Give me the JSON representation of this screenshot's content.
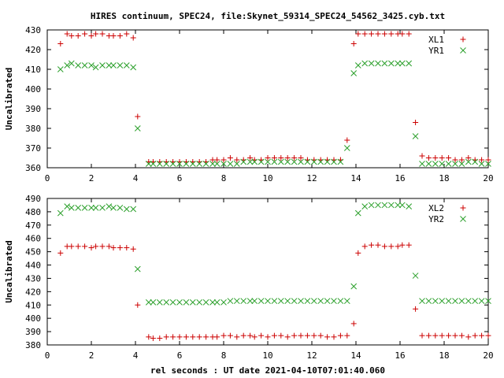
{
  "title": "HIRES continuum, SPEC24, file:Skynet_59314_SPEC24_54562_3425.cyb.txt",
  "xlabel": "rel seconds : UT date 2021-04-10T07:01:40.060",
  "colors": {
    "red": "#cc0000",
    "green": "#2ca02c",
    "axis": "#000000"
  },
  "chart_data": [
    {
      "type": "scatter",
      "ylabel": "Uncalibrated",
      "xlim": [
        0,
        20
      ],
      "ylim": [
        360,
        430
      ],
      "xticks": [
        0,
        2,
        4,
        6,
        8,
        10,
        12,
        14,
        16,
        18,
        20
      ],
      "yticks": [
        360,
        370,
        380,
        390,
        400,
        410,
        420,
        430
      ],
      "legend_position": "top-right",
      "series": [
        {
          "name": "XL1",
          "marker": "plus",
          "color": "#cc0000",
          "x": [
            0.6,
            0.9,
            1.1,
            1.4,
            1.7,
            2.0,
            2.2,
            2.5,
            2.8,
            3.0,
            3.3,
            3.6,
            3.9,
            4.1,
            4.6,
            4.8,
            5.1,
            5.4,
            5.7,
            6.0,
            6.3,
            6.6,
            6.9,
            7.2,
            7.5,
            7.7,
            8.0,
            8.3,
            8.6,
            8.9,
            9.2,
            9.4,
            9.7,
            10.0,
            10.3,
            10.6,
            10.9,
            11.2,
            11.5,
            11.8,
            12.1,
            12.4,
            12.7,
            13.0,
            13.3,
            13.6,
            13.9,
            14.1,
            14.4,
            14.7,
            15.0,
            15.3,
            15.6,
            15.9,
            16.1,
            16.4,
            16.7,
            17.0,
            17.3,
            17.6,
            17.9,
            18.2,
            18.5,
            18.8,
            19.1,
            19.4,
            19.7,
            20.0
          ],
          "y": [
            423,
            428,
            427,
            427,
            428,
            427,
            428,
            428,
            427,
            427,
            427,
            428,
            426,
            386,
            363,
            363,
            363,
            363,
            363,
            363,
            363,
            363,
            363,
            363,
            364,
            364,
            364,
            365,
            364,
            364,
            365,
            364,
            364,
            365,
            365,
            365,
            365,
            365,
            365,
            364,
            364,
            364,
            364,
            364,
            364,
            374,
            423,
            428,
            428,
            428,
            428,
            428,
            428,
            428,
            428,
            428,
            383,
            366,
            365,
            365,
            365,
            365,
            364,
            364,
            365,
            364,
            364,
            364
          ]
        },
        {
          "name": "YR1",
          "marker": "cross",
          "color": "#2ca02c",
          "x": [
            0.6,
            0.9,
            1.1,
            1.4,
            1.7,
            2.0,
            2.2,
            2.5,
            2.8,
            3.0,
            3.3,
            3.6,
            3.9,
            4.1,
            4.6,
            4.8,
            5.1,
            5.4,
            5.7,
            6.0,
            6.3,
            6.6,
            6.9,
            7.2,
            7.5,
            7.7,
            8.0,
            8.3,
            8.6,
            8.9,
            9.2,
            9.4,
            9.7,
            10.0,
            10.3,
            10.6,
            10.9,
            11.2,
            11.5,
            11.8,
            12.1,
            12.4,
            12.7,
            13.0,
            13.3,
            13.6,
            13.9,
            14.1,
            14.4,
            14.7,
            15.0,
            15.3,
            15.6,
            15.9,
            16.1,
            16.4,
            16.7,
            17.0,
            17.3,
            17.6,
            17.9,
            18.2,
            18.5,
            18.8,
            19.1,
            19.4,
            19.7,
            20.0
          ],
          "y": [
            410,
            412,
            413,
            412,
            412,
            412,
            411,
            412,
            412,
            412,
            412,
            412,
            411,
            380,
            362,
            362,
            362,
            362,
            362,
            362,
            362,
            362,
            362,
            362,
            362,
            362,
            362,
            362,
            362,
            363,
            363,
            363,
            363,
            363,
            363,
            363,
            363,
            363,
            363,
            363,
            363,
            363,
            363,
            363,
            363,
            370,
            408,
            412,
            413,
            413,
            413,
            413,
            413,
            413,
            413,
            413,
            376,
            362,
            362,
            362,
            362,
            362,
            362,
            362,
            363,
            363,
            362,
            362
          ]
        }
      ]
    },
    {
      "type": "scatter",
      "ylabel": "Uncalibrated",
      "xlim": [
        0,
        20
      ],
      "ylim": [
        380,
        490
      ],
      "xticks": [
        0,
        2,
        4,
        6,
        8,
        10,
        12,
        14,
        16,
        18,
        20
      ],
      "yticks": [
        380,
        390,
        400,
        410,
        420,
        430,
        440,
        450,
        460,
        470,
        480,
        490
      ],
      "legend_position": "top-right",
      "series": [
        {
          "name": "XL2",
          "marker": "plus",
          "color": "#cc0000",
          "x": [
            0.6,
            0.9,
            1.1,
            1.4,
            1.7,
            2.0,
            2.2,
            2.5,
            2.8,
            3.0,
            3.3,
            3.6,
            3.9,
            4.1,
            4.6,
            4.8,
            5.1,
            5.4,
            5.7,
            6.0,
            6.3,
            6.6,
            6.9,
            7.2,
            7.5,
            7.7,
            8.0,
            8.3,
            8.6,
            8.9,
            9.2,
            9.4,
            9.7,
            10.0,
            10.3,
            10.6,
            10.9,
            11.2,
            11.5,
            11.8,
            12.1,
            12.4,
            12.7,
            13.0,
            13.3,
            13.6,
            13.9,
            14.1,
            14.4,
            14.7,
            15.0,
            15.3,
            15.6,
            15.9,
            16.1,
            16.4,
            16.7,
            17.0,
            17.3,
            17.6,
            17.9,
            18.2,
            18.5,
            18.8,
            19.1,
            19.4,
            19.7,
            20.0
          ],
          "y": [
            449,
            454,
            454,
            454,
            454,
            453,
            454,
            454,
            454,
            453,
            453,
            453,
            452,
            410,
            386,
            385,
            385,
            386,
            386,
            386,
            386,
            386,
            386,
            386,
            386,
            386,
            387,
            387,
            386,
            387,
            387,
            386,
            387,
            386,
            387,
            387,
            386,
            387,
            387,
            387,
            387,
            387,
            386,
            386,
            387,
            387,
            396,
            449,
            454,
            455,
            455,
            454,
            454,
            454,
            455,
            455,
            407,
            387,
            387,
            387,
            387,
            387,
            387,
            387,
            386,
            387,
            387,
            387
          ]
        },
        {
          "name": "YR2",
          "marker": "cross",
          "color": "#2ca02c",
          "x": [
            0.6,
            0.9,
            1.1,
            1.4,
            1.7,
            2.0,
            2.2,
            2.5,
            2.8,
            3.0,
            3.3,
            3.6,
            3.9,
            4.1,
            4.6,
            4.8,
            5.1,
            5.4,
            5.7,
            6.0,
            6.3,
            6.6,
            6.9,
            7.2,
            7.5,
            7.7,
            8.0,
            8.3,
            8.6,
            8.9,
            9.2,
            9.4,
            9.7,
            10.0,
            10.3,
            10.6,
            10.9,
            11.2,
            11.5,
            11.8,
            12.1,
            12.4,
            12.7,
            13.0,
            13.3,
            13.6,
            13.9,
            14.1,
            14.4,
            14.7,
            15.0,
            15.3,
            15.6,
            15.9,
            16.1,
            16.4,
            16.7,
            17.0,
            17.3,
            17.6,
            17.9,
            18.2,
            18.5,
            18.8,
            19.1,
            19.4,
            19.7,
            20.0
          ],
          "y": [
            479,
            484,
            483,
            483,
            483,
            483,
            483,
            483,
            484,
            483,
            483,
            482,
            482,
            437,
            412,
            412,
            412,
            412,
            412,
            412,
            412,
            412,
            412,
            412,
            412,
            412,
            412,
            413,
            413,
            413,
            413,
            413,
            413,
            413,
            413,
            413,
            413,
            413,
            413,
            413,
            413,
            413,
            413,
            413,
            413,
            413,
            424,
            479,
            484,
            485,
            485,
            485,
            485,
            485,
            485,
            484,
            432,
            413,
            413,
            413,
            413,
            413,
            413,
            413,
            413,
            413,
            413,
            413
          ]
        }
      ]
    }
  ]
}
